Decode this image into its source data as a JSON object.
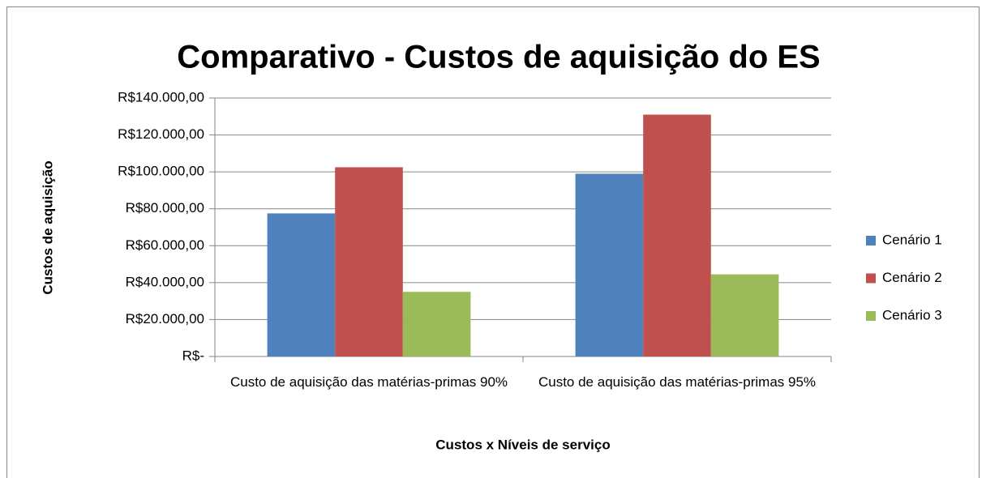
{
  "chart_data": {
    "type": "bar",
    "title": "Comparativo - Custos de aquisição do ES",
    "x_label": "Custos x Níveis de serviço",
    "y_label": "Custos de aquisição",
    "categories": [
      "Custo de aquisição das matérias-primas 90%",
      "Custo de aquisição das matérias-primas 95%"
    ],
    "series": [
      {
        "name": "Cenário 1",
        "color": "#4f81bd",
        "values": [
          77500,
          99000
        ]
      },
      {
        "name": "Cenário 2",
        "color": "#c0504d",
        "values": [
          102500,
          131000
        ]
      },
      {
        "name": "Cenário 3",
        "color": "#9bbb59",
        "values": [
          35000,
          44500
        ]
      }
    ],
    "ylim": [
      0,
      140000
    ],
    "yticks": [
      {
        "value": 0,
        "label": "R$-"
      },
      {
        "value": 20000,
        "label": "R$20.000,00"
      },
      {
        "value": 40000,
        "label": "R$40.000,00"
      },
      {
        "value": 60000,
        "label": "R$60.000,00"
      },
      {
        "value": 80000,
        "label": "R$80.000,00"
      },
      {
        "value": 100000,
        "label": "R$100.000,00"
      },
      {
        "value": 120000,
        "label": "R$120.000,00"
      },
      {
        "value": 140000,
        "label": "R$140.000,00"
      }
    ],
    "grid": true,
    "legend": "right"
  }
}
